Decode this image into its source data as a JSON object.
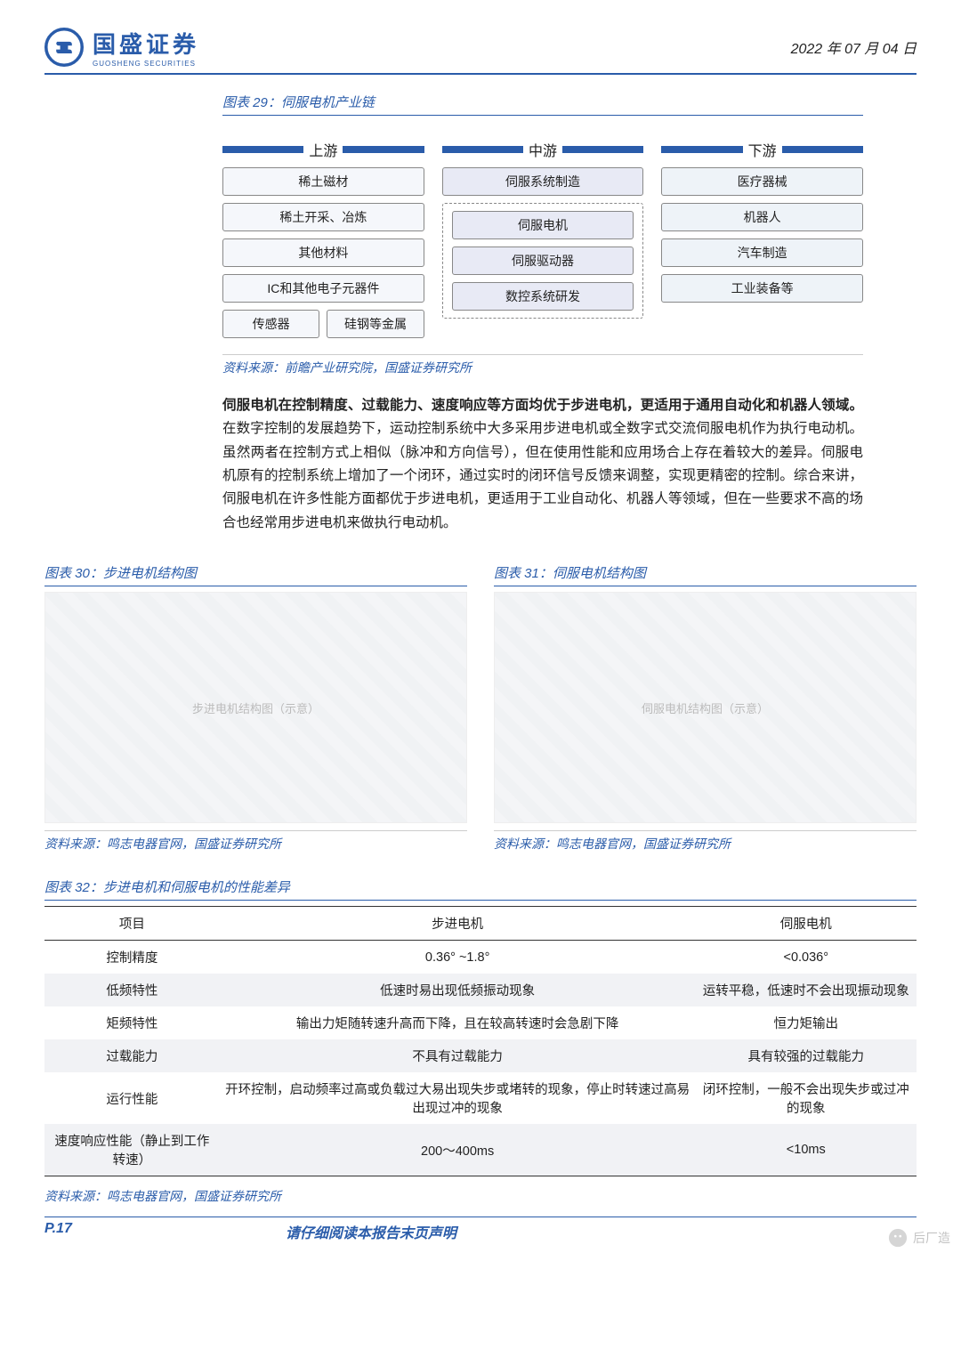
{
  "header": {
    "logo_cn": "国盛证券",
    "logo_en": "GUOSHENG SECURITIES",
    "date": "2022 年 07 月 04 日"
  },
  "fig29": {
    "title": "图表 29：伺服电机产业链",
    "source": "资料来源：前瞻产业研究院，国盛证券研究所",
    "cols": {
      "up": {
        "head": "上游",
        "items": [
          "稀土磁材",
          "稀土开采、冶炼",
          "其他材料",
          "IC和其他电子元器件"
        ],
        "row2": [
          "传感器",
          "硅钢等金属"
        ]
      },
      "mid": {
        "head": "中游",
        "top": "伺服系统制造",
        "group": [
          "伺服电机",
          "伺服驱动器",
          "数控系统研发"
        ]
      },
      "down": {
        "head": "下游",
        "items": [
          "医疗器械",
          "机器人",
          "汽车制造",
          "工业装备等"
        ]
      }
    }
  },
  "paragraph": {
    "bold": "伺服电机在控制精度、过载能力、速度响应等方面均优于步进电机，更适用于通用自动化和机器人领域。",
    "rest": "在数字控制的发展趋势下，运动控制系统中大多采用步进电机或全数字式交流伺服电机作为执行电动机。虽然两者在控制方式上相似（脉冲和方向信号），但在使用性能和应用场合上存在着较大的差异。伺服电机原有的控制系统上增加了一个闭环，通过实时的闭环信号反馈来调整，实现更精密的控制。综合来讲，伺服电机在许多性能方面都优于步进电机，更适用于工业自动化、机器人等领域，但在一些要求不高的场合也经常用步进电机来做执行电动机。"
  },
  "fig30": {
    "title": "图表 30：步进电机结构图",
    "placeholder": "步进电机结构图（示意）",
    "source": "资料来源：鸣志电器官网，国盛证券研究所"
  },
  "fig31": {
    "title": "图表 31：伺服电机结构图",
    "placeholder": "伺服电机结构图（示意）",
    "source": "资料来源：鸣志电器官网，国盛证券研究所"
  },
  "fig32": {
    "title": "图表 32：步进电机和伺服电机的性能差异",
    "source": "资料来源：鸣志电器官网，国盛证券研究所",
    "columns": [
      "项目",
      "步进电机",
      "伺服电机"
    ],
    "rows": [
      [
        "控制精度",
        "0.36° ~1.8°",
        "<0.036°"
      ],
      [
        "低频特性",
        "低速时易出现低频振动现象",
        "运转平稳，低速时不会出现振动现象"
      ],
      [
        "矩频特性",
        "输出力矩随转速升高而下降，且在较高转速时会急剧下降",
        "恒力矩输出"
      ],
      [
        "过载能力",
        "不具有过载能力",
        "具有较强的过载能力"
      ],
      [
        "运行性能",
        "开环控制，启动频率过高或负载过大易出现失步或堵转的现象，停止时转速过高易出现过冲的现象",
        "闭环控制，一般不会出现失步或过冲的现象"
      ],
      [
        "速度响应性能（静止到工作转速）",
        "200～400ms",
        "<10ms"
      ]
    ]
  },
  "footer": {
    "page": "P.17",
    "notice": "请仔细阅读本报告末页声明"
  },
  "watermark": "后厂造"
}
